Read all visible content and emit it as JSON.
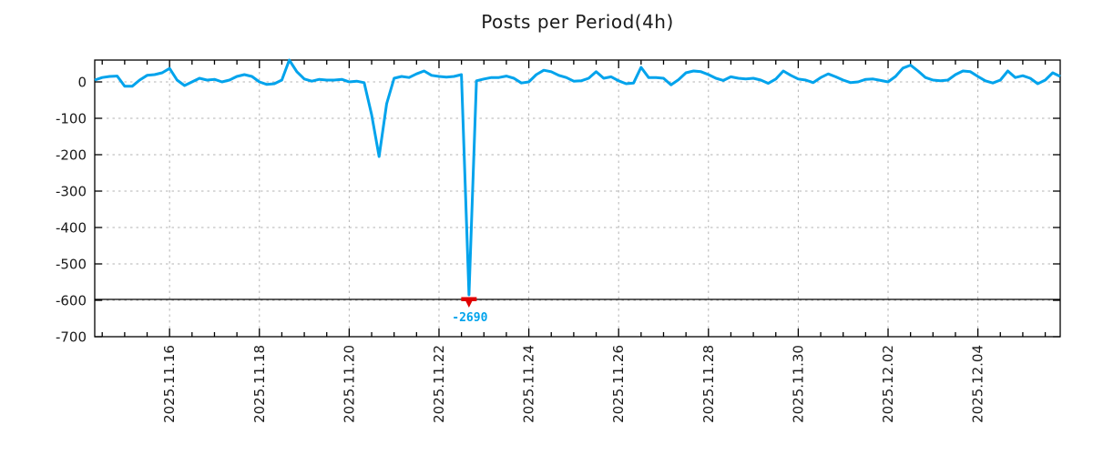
{
  "title": "Posts per Period(4h)",
  "colors": {
    "line": "#00a3ec",
    "marker": "#e00000",
    "annotation": "#00a3ec",
    "grid": "#b3b3b3",
    "axis": "#000000",
    "text": "#1a1a1a",
    "background": "#ffffff"
  },
  "chart_data": {
    "type": "line",
    "title": "Posts per Period(4h)",
    "xlabel": "",
    "ylabel": "",
    "x_start": "2025-11-14 08:00",
    "x_interval_hours": 4,
    "x_tick_labels": [
      "2025.11.16",
      "2025.11.18",
      "2025.11.20",
      "2025.11.22",
      "2025.11.24",
      "2025.11.26",
      "2025.11.28",
      "2025.11.30",
      "2025.12.02",
      "2025.12.04"
    ],
    "x_tick_label_rotation_deg": -90,
    "x_minor_tick_hours": 12,
    "y_ticks": [
      0,
      -100,
      -200,
      -300,
      -400,
      -500,
      -600,
      -700
    ],
    "ylim": [
      -700,
      60
    ],
    "grid": true,
    "legend": "none",
    "values": [
      5,
      12,
      15,
      16,
      -12,
      -12,
      5,
      18,
      20,
      25,
      37,
      5,
      -10,
      0,
      10,
      5,
      7,
      0,
      5,
      15,
      20,
      15,
      0,
      -7,
      -5,
      5,
      60,
      28,
      8,
      2,
      7,
      5,
      5,
      7,
      0,
      2,
      -2,
      -90,
      -205,
      -60,
      10,
      15,
      12,
      22,
      30,
      18,
      15,
      13,
      15,
      20,
      -2690,
      3,
      8,
      12,
      12,
      16,
      10,
      -3,
      0,
      20,
      32,
      28,
      18,
      12,
      2,
      3,
      10,
      28,
      10,
      14,
      3,
      -5,
      -3,
      40,
      12,
      12,
      10,
      -8,
      6,
      25,
      30,
      28,
      20,
      10,
      4,
      14,
      10,
      8,
      10,
      5,
      -4,
      8,
      30,
      18,
      8,
      5,
      -2,
      12,
      22,
      14,
      5,
      -2,
      0,
      7,
      8,
      4,
      0,
      15,
      38,
      46,
      30,
      12,
      5,
      3,
      5,
      20,
      30,
      28,
      15,
      3,
      -3,
      5,
      30,
      12,
      17,
      10,
      -5,
      5,
      25,
      15
    ],
    "min_annotation": {
      "text": "-2690",
      "value": -2690,
      "point_index": 50,
      "marker": "red-down-arrow",
      "clip_threshold": -600,
      "threshold_line": -600
    }
  }
}
